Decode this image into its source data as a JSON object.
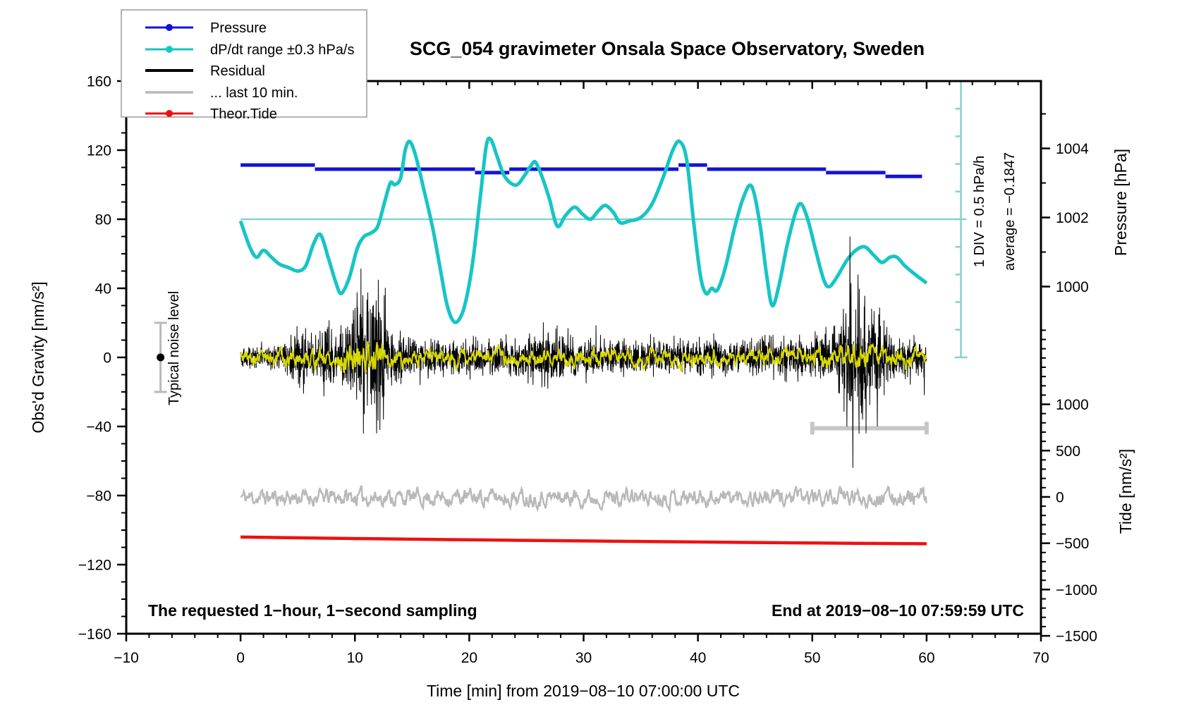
{
  "title": "SCG_054 gravimeter Onsala Space Observatory, Sweden",
  "legend": {
    "items": [
      {
        "label": "Pressure",
        "color": "#1212d9",
        "marker": true,
        "width": 3
      },
      {
        "label": "dP/dt range ±0.3 hPa/s",
        "color": "#17c5c5",
        "marker": true,
        "width": 3
      },
      {
        "label": "Residual",
        "color": "#000000",
        "marker": false,
        "width": 4
      },
      {
        "label": "... last 10 min.",
        "color": "#b9b9b9",
        "marker": false,
        "width": 3.5
      },
      {
        "label": "Theor.Tide",
        "color": "#ee1111",
        "marker": true,
        "width": 3
      }
    ]
  },
  "annotations": {
    "noise_label": "Typical noise level",
    "div_label": "1 DIV = 0.5 hPa/h",
    "avg_label": "average = −0.1847",
    "bottom_left": "The requested 1−hour, 1−second sampling",
    "bottom_right": "End at 2019−08−10 07:59:59 UTC",
    "xlabel": "Time [min] from 2019−08−10 07:00:00 UTC",
    "ylabel_left": "Obs'd Gravity [nm/s²]",
    "ylabel_pressure": "Pressure [hPa]",
    "ylabel_tide": "Tide [nm/s²]"
  },
  "chart_data": {
    "type": "line",
    "title": "SCG_054 gravimeter Onsala Space Observatory, Sweden",
    "xlabel": "Time [min] from 2019−08−10 07:00:00 UTC",
    "x_range": [
      -10,
      70
    ],
    "x_major": 10,
    "x_minor": 2,
    "x_tick_labels": [
      "−10",
      "0",
      "10",
      "20",
      "30",
      "40",
      "50",
      "60",
      "70"
    ],
    "x_tick_values": [
      -10,
      0,
      10,
      20,
      30,
      40,
      50,
      60,
      70
    ],
    "gravity_axis": {
      "label": "Obs'd Gravity [nm/s²]",
      "range": [
        -160,
        160
      ],
      "major": 40,
      "minor": 10,
      "tick_labels": [
        "160",
        "120",
        "80",
        "40",
        "0",
        "−40",
        "−80",
        "−120",
        "−160"
      ],
      "tick_values": [
        160,
        120,
        80,
        40,
        0,
        -40,
        -80,
        -120,
        -160
      ]
    },
    "pressure_axis": {
      "label": "Pressure [hPa]",
      "tick_labels": [
        "1004",
        "1002",
        "1000"
      ],
      "tick_values": [
        1004,
        1002,
        1000
      ],
      "minor_ticks": [
        1005,
        1003,
        1001
      ],
      "g0": 41,
      "per_hPa": 20
    },
    "tide_axis": {
      "label": "Tide [nm/s²]",
      "tick_labels": [
        "1000",
        "500",
        "0",
        "−500",
        "−1000",
        "−1500"
      ],
      "tick_values": [
        1000,
        500,
        0,
        -500,
        -1000,
        -1500
      ],
      "minor_from": 1800,
      "minor_to": -1500,
      "minor_every": 100,
      "g0": -80.8,
      "per_unit": 0.05363
    },
    "pressure_steps": [
      [
        0,
        6.5,
        1003.52
      ],
      [
        6.5,
        20.5,
        1003.4
      ],
      [
        20.5,
        23.5,
        1003.3
      ],
      [
        23.5,
        38.3,
        1003.4
      ],
      [
        38.3,
        40.8,
        1003.52
      ],
      [
        40.8,
        51.2,
        1003.4
      ],
      [
        51.2,
        56.4,
        1003.3
      ],
      [
        56.4,
        59.6,
        1003.19
      ]
    ],
    "dpdt_curve": [
      [
        0,
        79
      ],
      [
        0.8,
        64
      ],
      [
        1.4,
        58
      ],
      [
        2,
        62
      ],
      [
        2.7,
        58
      ],
      [
        3.4,
        54
      ],
      [
        4.2,
        52
      ],
      [
        5,
        50
      ],
      [
        5.7,
        53
      ],
      [
        6.4,
        66
      ],
      [
        7,
        71
      ],
      [
        7.7,
        57
      ],
      [
        8.3,
        44
      ],
      [
        8.8,
        37
      ],
      [
        9.5,
        46
      ],
      [
        10.2,
        63
      ],
      [
        10.8,
        70
      ],
      [
        11.4,
        72
      ],
      [
        12,
        76
      ],
      [
        12.6,
        90
      ],
      [
        13.1,
        101
      ],
      [
        13.5,
        100
      ],
      [
        14,
        104
      ],
      [
        14.4,
        120
      ],
      [
        14.8,
        125
      ],
      [
        15.3,
        117
      ],
      [
        16,
        98
      ],
      [
        16.8,
        75
      ],
      [
        17.5,
        50
      ],
      [
        18,
        32
      ],
      [
        18.5,
        22
      ],
      [
        19,
        21
      ],
      [
        19.6,
        30
      ],
      [
        20.3,
        55
      ],
      [
        21,
        95
      ],
      [
        21.5,
        123
      ],
      [
        21.9,
        126
      ],
      [
        22.4,
        117
      ],
      [
        23,
        106
      ],
      [
        23.6,
        101
      ],
      [
        24.2,
        100
      ],
      [
        24.8,
        105
      ],
      [
        25.4,
        111
      ],
      [
        25.8,
        113
      ],
      [
        26.4,
        104
      ],
      [
        27,
        92
      ],
      [
        27.7,
        76
      ],
      [
        28.4,
        82
      ],
      [
        29.2,
        87
      ],
      [
        29.9,
        83
      ],
      [
        30.6,
        80
      ],
      [
        31.3,
        85
      ],
      [
        31.9,
        88
      ],
      [
        32.6,
        84
      ],
      [
        33.2,
        78
      ],
      [
        34,
        79
      ],
      [
        35,
        81
      ],
      [
        36,
        89
      ],
      [
        37,
        105
      ],
      [
        37.8,
        120
      ],
      [
        38.4,
        125
      ],
      [
        39,
        115
      ],
      [
        39.6,
        80
      ],
      [
        40.2,
        48
      ],
      [
        40.7,
        37
      ],
      [
        41.2,
        40
      ],
      [
        41.7,
        39
      ],
      [
        42.4,
        52
      ],
      [
        43.2,
        75
      ],
      [
        44,
        93
      ],
      [
        44.7,
        99
      ],
      [
        45.4,
        78
      ],
      [
        46,
        48
      ],
      [
        46.5,
        30
      ],
      [
        47.1,
        42
      ],
      [
        47.8,
        65
      ],
      [
        48.5,
        83
      ],
      [
        49,
        89
      ],
      [
        49.6,
        80
      ],
      [
        50.3,
        62
      ],
      [
        51,
        45
      ],
      [
        51.5,
        41
      ],
      [
        52.2,
        47
      ],
      [
        53,
        56
      ],
      [
        53.8,
        62
      ],
      [
        54.6,
        64
      ],
      [
        55.4,
        59
      ],
      [
        56.1,
        55
      ],
      [
        56.8,
        58
      ],
      [
        57.4,
        58
      ],
      [
        58.1,
        53
      ],
      [
        59,
        48
      ],
      [
        60,
        43
      ]
    ],
    "dpdt_reference_gravity": 80,
    "dpdt_ruler": {
      "x_min": 63,
      "gravity_top": 160,
      "gravity_bottom": 0,
      "divisions": 10,
      "div_value": "0.5 hPa/h",
      "average": -0.1847
    },
    "residual": {
      "center": 0,
      "envelope": [
        [
          0,
          5
        ],
        [
          2,
          5
        ],
        [
          4,
          6
        ],
        [
          4.6,
          11
        ],
        [
          5.4,
          15
        ],
        [
          6,
          9
        ],
        [
          6.8,
          8
        ],
        [
          7.4,
          16
        ],
        [
          8,
          13
        ],
        [
          8.6,
          10
        ],
        [
          9.2,
          15
        ],
        [
          9.8,
          22
        ],
        [
          10.4,
          30
        ],
        [
          11,
          31
        ],
        [
          11.6,
          33
        ],
        [
          12.2,
          31
        ],
        [
          12.8,
          20
        ],
        [
          13.4,
          12
        ],
        [
          14.5,
          9
        ],
        [
          16,
          8
        ],
        [
          18,
          7.5
        ],
        [
          20,
          8
        ],
        [
          22,
          7.5
        ],
        [
          24,
          8.5
        ],
        [
          25.5,
          10
        ],
        [
          26.5,
          13
        ],
        [
          27.5,
          12
        ],
        [
          28.5,
          10
        ],
        [
          30,
          8.5
        ],
        [
          32,
          8
        ],
        [
          34,
          7.5
        ],
        [
          36,
          8
        ],
        [
          38,
          7.5
        ],
        [
          40,
          8
        ],
        [
          42,
          7.5
        ],
        [
          44,
          8
        ],
        [
          46,
          8
        ],
        [
          48,
          8.5
        ],
        [
          50,
          9.5
        ],
        [
          51.5,
          11
        ],
        [
          52.6,
          18
        ],
        [
          53.2,
          32
        ],
        [
          53.8,
          33
        ],
        [
          54.4,
          27
        ],
        [
          55,
          21
        ],
        [
          55.6,
          24
        ],
        [
          56.2,
          16
        ],
        [
          57,
          11
        ],
        [
          58,
          9
        ],
        [
          59,
          8.5
        ],
        [
          60,
          8
        ]
      ],
      "spikes": [
        [
          5.5,
          -21
        ],
        [
          10.7,
          36
        ],
        [
          11.9,
          -44
        ],
        [
          12.5,
          -36
        ],
        [
          26.6,
          -17
        ],
        [
          53.3,
          70
        ],
        [
          53.55,
          -64
        ],
        [
          54.0,
          48
        ],
        [
          54.7,
          -44
        ],
        [
          55.7,
          -40
        ]
      ]
    },
    "residual_smooth": {
      "envelope": [
        [
          0,
          3
        ],
        [
          8,
          4
        ],
        [
          9,
          6
        ],
        [
          10.5,
          7
        ],
        [
          12,
          6
        ],
        [
          13.5,
          4
        ],
        [
          16,
          3
        ],
        [
          30,
          3
        ],
        [
          45,
          3
        ],
        [
          52,
          4
        ],
        [
          54,
          5
        ],
        [
          56,
          4
        ],
        [
          60,
          3
        ]
      ]
    },
    "last10_series": {
      "center_gravity": -81,
      "amplitude": 5.5
    },
    "last10_bar": {
      "x0": 50,
      "x1": 60,
      "gravity": -41
    },
    "tide_series": [
      [
        0,
        -433
      ],
      [
        10,
        -449
      ],
      [
        20,
        -463
      ],
      [
        30,
        -475
      ],
      [
        40,
        -487
      ],
      [
        50,
        -497
      ],
      [
        60,
        -506
      ]
    ],
    "noise_marker": {
      "x": -7,
      "gravity": 0,
      "half_range": 20
    },
    "colors": {
      "pressure": "#1212d9",
      "dpdt": "#17c5c5",
      "dpdt_light": "#85d2cc",
      "residual": "#000000",
      "residual_smooth": "#d8d800",
      "last10": "#b9b9b9",
      "last10_bar": "#c6c6c6",
      "tide": "#ee1111"
    }
  }
}
